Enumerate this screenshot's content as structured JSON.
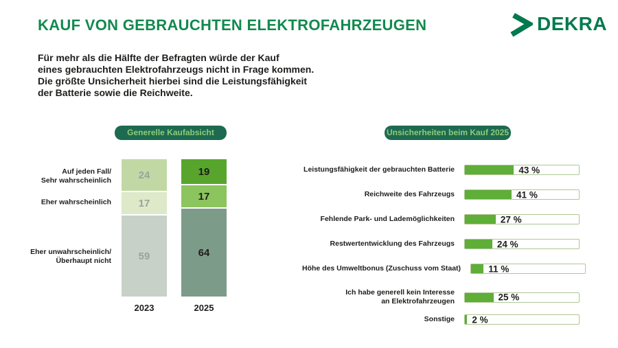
{
  "header": {
    "title": "KAUF VON GEBRAUCHTEN ELEKTROFAHRZEUGEN",
    "logo_text": "DEKRA",
    "title_color": "#12894e",
    "brand_color": "#007a4e"
  },
  "intro": "Für mehr als die Hälfte der Befragten würde der Kauf\neines gebrauchten Elektrofahrzeugs nicht in Frage kommen.\nDie größte Unsicherheit hierbei sind die Leistungsfähigkeit\nder Batterie sowie die Reichweite.",
  "badge_colors": {
    "background": "#1d6a51",
    "text": "#8fcb78"
  },
  "chart_data": [
    {
      "type": "bar",
      "subtype": "stacked-vertical-100pct",
      "title": "Generelle Kaufabsicht",
      "categories": [
        "Auf jeden Fall/\nSehr wahrscheinlich",
        "Eher wahrscheinlich",
        "Eher unwahrscheinlich/\nÜberhaupt nicht"
      ],
      "series": [
        {
          "name": "2023",
          "values": [
            24,
            17,
            59
          ],
          "colors": [
            "#c1d8a4",
            "#dde9c9",
            "#c7d1c8"
          ],
          "label_color": "#9aa49b"
        },
        {
          "name": "2025",
          "values": [
            19,
            17,
            64
          ],
          "colors": [
            "#58a52d",
            "#8cc45e",
            "#7d9b89"
          ],
          "label_color": "#1d1d1b"
        }
      ],
      "ylim": [
        0,
        100
      ],
      "legend_position": "none",
      "grid": false
    },
    {
      "type": "bar",
      "subtype": "horizontal",
      "title": "Unsicherheiten beim Kauf 2025",
      "categories": [
        "Leistungsfähigkeit der gebrauchten Batterie",
        "Reichweite des Fahrzeugs",
        "Fehlende Park- und Lademöglichkeiten",
        "Restwertentwicklung des Fahrzeugs",
        "Höhe des Umweltbonus (Zuschuss vom Staat)",
        "Ich habe generell kein Interesse\nan Elektrofahrzeugen",
        "Sonstige"
      ],
      "values": [
        43,
        41,
        27,
        24,
        11,
        25,
        2
      ],
      "value_labels": [
        "43 %",
        "41 %",
        "27 %",
        "24 %",
        "11 %",
        "25 %",
        "2 %"
      ],
      "value_suffix": " %",
      "xlim": [
        0,
        100
      ],
      "bar_color": "#5eae37",
      "track_border_color": "#aec695",
      "grid": false,
      "legend_position": "none"
    }
  ]
}
